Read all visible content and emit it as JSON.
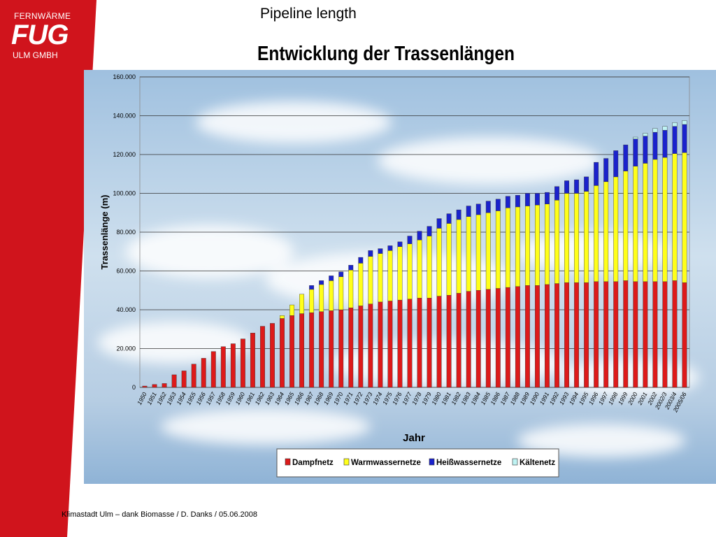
{
  "slide": {
    "title": "Pipeline length",
    "footer": "Klimastadt Ulm – dank Biomasse / D. Danks / 05.06.2008"
  },
  "logo": {
    "line1": "FERNWÄRME",
    "line2": "FUG",
    "line3": "ULM GMBH"
  },
  "colors": {
    "brand_red": "#d0141c",
    "dampf": "#dd1a1a",
    "warmwasser": "#ffff1a",
    "heisswasser": "#1a22cc",
    "kaelte": "#bff3f3"
  },
  "chart_data": {
    "type": "bar",
    "stacked": true,
    "title": "Entwicklung der Trassenlängen",
    "xlabel": "Jahr",
    "ylabel": "Trassenlänge (m)",
    "ylim": [
      0,
      160000
    ],
    "yticks": [
      "0",
      "20.000",
      "40.000",
      "60.000",
      "80.000",
      "100.000",
      "120.000",
      "140.000",
      "160.000"
    ],
    "grid": true,
    "legend_position": "bottom",
    "categories": [
      "1950",
      "1951",
      "1952",
      "1953",
      "1954",
      "1955",
      "1956",
      "1957",
      "1958",
      "1959",
      "1960",
      "1961",
      "1962",
      "1963",
      "1964",
      "1965",
      "1966",
      "1967",
      "1968",
      "1969",
      "1970",
      "1971",
      "1972",
      "1973",
      "1974",
      "1975",
      "1976",
      "1977",
      "1978",
      "1979",
      "1980",
      "1981",
      "1982",
      "1983",
      "1984",
      "1985",
      "1986",
      "1987",
      "1988",
      "1989",
      "1990",
      "1991",
      "1992",
      "1993",
      "1994",
      "1995",
      "1996",
      "1997",
      "1998",
      "1999",
      "2000",
      "2001",
      "2002",
      "2002/3",
      "2003/4",
      "2005/06"
    ],
    "series": [
      {
        "name": "Dampfnetz",
        "color": "#dd1a1a",
        "values": [
          700,
          1500,
          2000,
          6500,
          8500,
          12000,
          15000,
          18500,
          21000,
          22500,
          25000,
          28000,
          31500,
          33000,
          35500,
          37000,
          38000,
          38500,
          39000,
          39500,
          40000,
          41000,
          42000,
          43000,
          44000,
          44500,
          45000,
          45500,
          46000,
          46000,
          47000,
          47500,
          48500,
          49500,
          50000,
          50500,
          51000,
          51500,
          52000,
          52500,
          52500,
          53000,
          53500,
          54000,
          54000,
          54000,
          54500,
          54500,
          54500,
          55000,
          54500,
          54500,
          54500,
          54500,
          55000,
          54000
        ]
      },
      {
        "name": "Warmwassernetze",
        "color": "#ffff1a",
        "values": [
          0,
          0,
          0,
          0,
          0,
          0,
          0,
          0,
          0,
          0,
          0,
          0,
          0,
          0,
          1500,
          5500,
          10000,
          12000,
          14000,
          15500,
          17000,
          19500,
          22000,
          24500,
          25000,
          26000,
          27500,
          28500,
          30000,
          32000,
          35000,
          37000,
          38000,
          38500,
          39000,
          39500,
          40000,
          41000,
          41000,
          41000,
          41500,
          41500,
          43000,
          46000,
          46000,
          47000,
          49500,
          51500,
          54000,
          56500,
          59500,
          61000,
          63000,
          64000,
          65500,
          67000
        ]
      },
      {
        "name": "Heißwassernetze",
        "color": "#1a22cc",
        "values": [
          0,
          0,
          0,
          0,
          0,
          0,
          0,
          0,
          0,
          0,
          0,
          0,
          0,
          0,
          0,
          0,
          0,
          2000,
          2000,
          2500,
          2500,
          2500,
          3000,
          3000,
          2500,
          2500,
          2500,
          4000,
          4500,
          5000,
          5000,
          5000,
          5000,
          5500,
          5500,
          6000,
          6000,
          6000,
          6000,
          6500,
          6000,
          6000,
          7000,
          6500,
          7000,
          7500,
          12000,
          12000,
          13500,
          13500,
          14000,
          14000,
          14000,
          14000,
          14000,
          14500
        ]
      },
      {
        "name": "Kältenetz",
        "color": "#bff3f3",
        "values": [
          0,
          0,
          0,
          0,
          0,
          0,
          0,
          0,
          0,
          0,
          0,
          0,
          0,
          0,
          0,
          0,
          0,
          0,
          0,
          0,
          0,
          0,
          0,
          0,
          0,
          0,
          0,
          0,
          0,
          0,
          0,
          0,
          0,
          0,
          0,
          0,
          0,
          0,
          0,
          0,
          0,
          0,
          0,
          0,
          0,
          0,
          0,
          0,
          0,
          0,
          1000,
          1500,
          2000,
          2000,
          2000,
          2000
        ]
      }
    ]
  }
}
